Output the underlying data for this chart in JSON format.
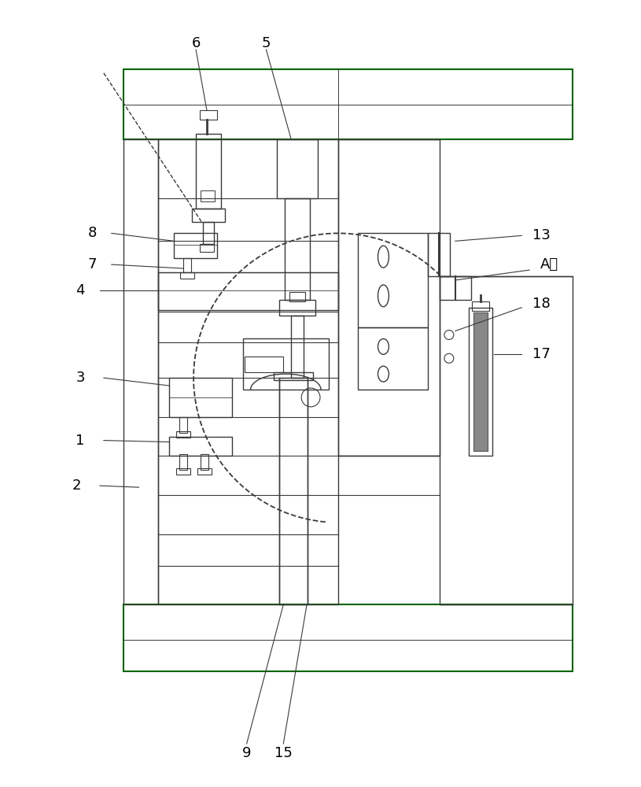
{
  "bg_color": "#ffffff",
  "lc": "#3a3a3a",
  "gc": "#006400",
  "fig_width": 8.15,
  "fig_height": 10.0
}
